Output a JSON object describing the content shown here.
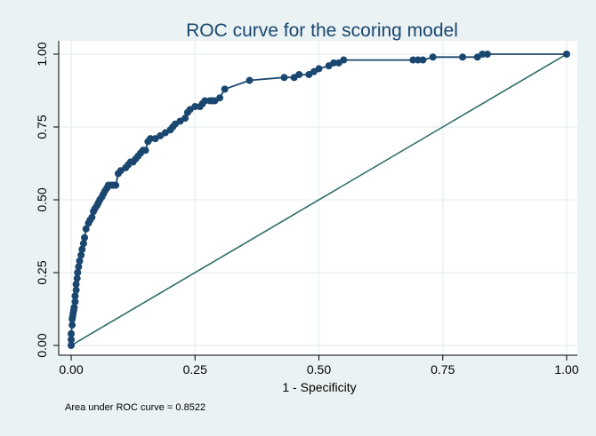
{
  "chart_data": {
    "type": "line",
    "title": "ROC curve for the scoring model",
    "xlabel": "1 - Specificity",
    "ylabel": "",
    "xlim": [
      0,
      1
    ],
    "ylim": [
      0,
      1
    ],
    "x_ticks": [
      "0.00",
      "0.25",
      "0.50",
      "0.75",
      "1.00"
    ],
    "y_ticks": [
      "0.00",
      "0.25",
      "0.50",
      "0.75",
      "1.00"
    ],
    "grid": true,
    "note": "Area under ROC curve = 0.8522",
    "colors": {
      "roc_curve": "#1a476f",
      "reference_line": "#2d6d66",
      "grid": "#eaf2f3",
      "background": "#eaf2f3",
      "plot_background": "#ffffff"
    },
    "series": [
      {
        "type": "line-with-markers",
        "x": [
          0,
          0,
          0,
          0.002,
          0.002,
          0.003,
          0.004,
          0.005,
          0.006,
          0.008,
          0.008,
          0.01,
          0.01,
          0.012,
          0.013,
          0.015,
          0.017,
          0.02,
          0.022,
          0.025,
          0.027,
          0.03,
          0.035,
          0.038,
          0.042,
          0.045,
          0.048,
          0.052,
          0.055,
          0.058,
          0.062,
          0.065,
          0.068,
          0.072,
          0.075,
          0.078,
          0.082,
          0.085,
          0.09,
          0.095,
          0.1,
          0.11,
          0.115,
          0.12,
          0.125,
          0.13,
          0.135,
          0.14,
          0.145,
          0.15,
          0.155,
          0.16,
          0.17,
          0.18,
          0.19,
          0.2,
          0.205,
          0.21,
          0.22,
          0.23,
          0.235,
          0.24,
          0.25,
          0.26,
          0.265,
          0.27,
          0.28,
          0.285,
          0.29,
          0.3,
          0.31,
          0.36,
          0.43,
          0.45,
          0.46,
          0.48,
          0.49,
          0.5,
          0.52,
          0.53,
          0.54,
          0.55,
          0.69,
          0.7,
          0.71,
          0.73,
          0.79,
          0.82,
          0.83,
          0.84,
          1
        ],
        "y": [
          0,
          0.02,
          0.04,
          0.07,
          0.09,
          0.1,
          0.11,
          0.12,
          0.13,
          0.15,
          0.17,
          0.19,
          0.21,
          0.23,
          0.25,
          0.27,
          0.29,
          0.31,
          0.33,
          0.35,
          0.37,
          0.4,
          0.42,
          0.43,
          0.44,
          0.46,
          0.47,
          0.48,
          0.49,
          0.5,
          0.51,
          0.52,
          0.53,
          0.54,
          0.55,
          0.55,
          0.55,
          0.55,
          0.55,
          0.59,
          0.6,
          0.61,
          0.62,
          0.63,
          0.63,
          0.64,
          0.65,
          0.66,
          0.67,
          0.67,
          0.7,
          0.71,
          0.71,
          0.72,
          0.73,
          0.74,
          0.75,
          0.76,
          0.77,
          0.78,
          0.8,
          0.81,
          0.82,
          0.82,
          0.83,
          0.84,
          0.84,
          0.84,
          0.84,
          0.85,
          0.88,
          0.91,
          0.92,
          0.92,
          0.93,
          0.93,
          0.94,
          0.95,
          0.96,
          0.97,
          0.97,
          0.98,
          0.98,
          0.98,
          0.98,
          0.99,
          0.99,
          0.99,
          1,
          1,
          1
        ]
      },
      {
        "type": "reference-line",
        "x": [
          0,
          1
        ],
        "y": [
          0,
          1
        ]
      }
    ]
  }
}
